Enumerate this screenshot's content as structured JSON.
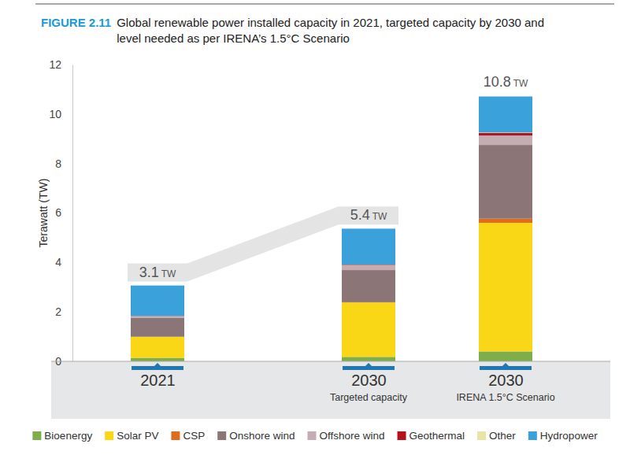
{
  "chart_data": {
    "type": "bar",
    "stacked": true,
    "figure_label": "FIGURE 2.11",
    "title": "Global renewable power installed capacity in 2021, targeted capacity by 2030 and level needed as per IRENA’s 1.5°C Scenario",
    "y_label": "Terawatt (TW)",
    "categories": [
      "2021",
      "2030",
      "2030"
    ],
    "category_sublabels": [
      null,
      "Targeted capacity",
      "IRENA 1.5°C Scenario"
    ],
    "series": [
      {
        "name": "Bioenergy",
        "color": "#7dae4a",
        "values": [
          0.14,
          0.18,
          0.4
        ]
      },
      {
        "name": "Solar PV",
        "color": "#f9d616",
        "values": [
          0.85,
          2.2,
          5.2
        ]
      },
      {
        "name": "CSP",
        "color": "#e06c1e",
        "values": [
          0.006,
          0.01,
          0.17
        ]
      },
      {
        "name": "Onshore wind",
        "color": "#8b7577",
        "values": [
          0.77,
          1.3,
          2.98
        ]
      },
      {
        "name": "Offshore wind",
        "color": "#c4adb3",
        "values": [
          0.05,
          0.2,
          0.38
        ]
      },
      {
        "name": "Geothermal",
        "color": "#b5121b",
        "values": [
          0.015,
          0.02,
          0.1
        ]
      },
      {
        "name": "Other",
        "color": "#e8e4a8",
        "values": [
          0.005,
          0.005,
          0.02
        ]
      },
      {
        "name": "Hydropower",
        "color": "#3aa1db",
        "values": [
          1.23,
          1.45,
          1.46
        ]
      }
    ],
    "totals": [
      3.1,
      5.4,
      10.8
    ],
    "total_labels": [
      "3.1 TW",
      "5.4 TW",
      "10.8 TW"
    ],
    "ylim": [
      0,
      12
    ],
    "yticks": [
      0,
      2,
      4,
      6,
      8,
      10,
      12
    ],
    "grid": false,
    "legend": "bottom"
  }
}
